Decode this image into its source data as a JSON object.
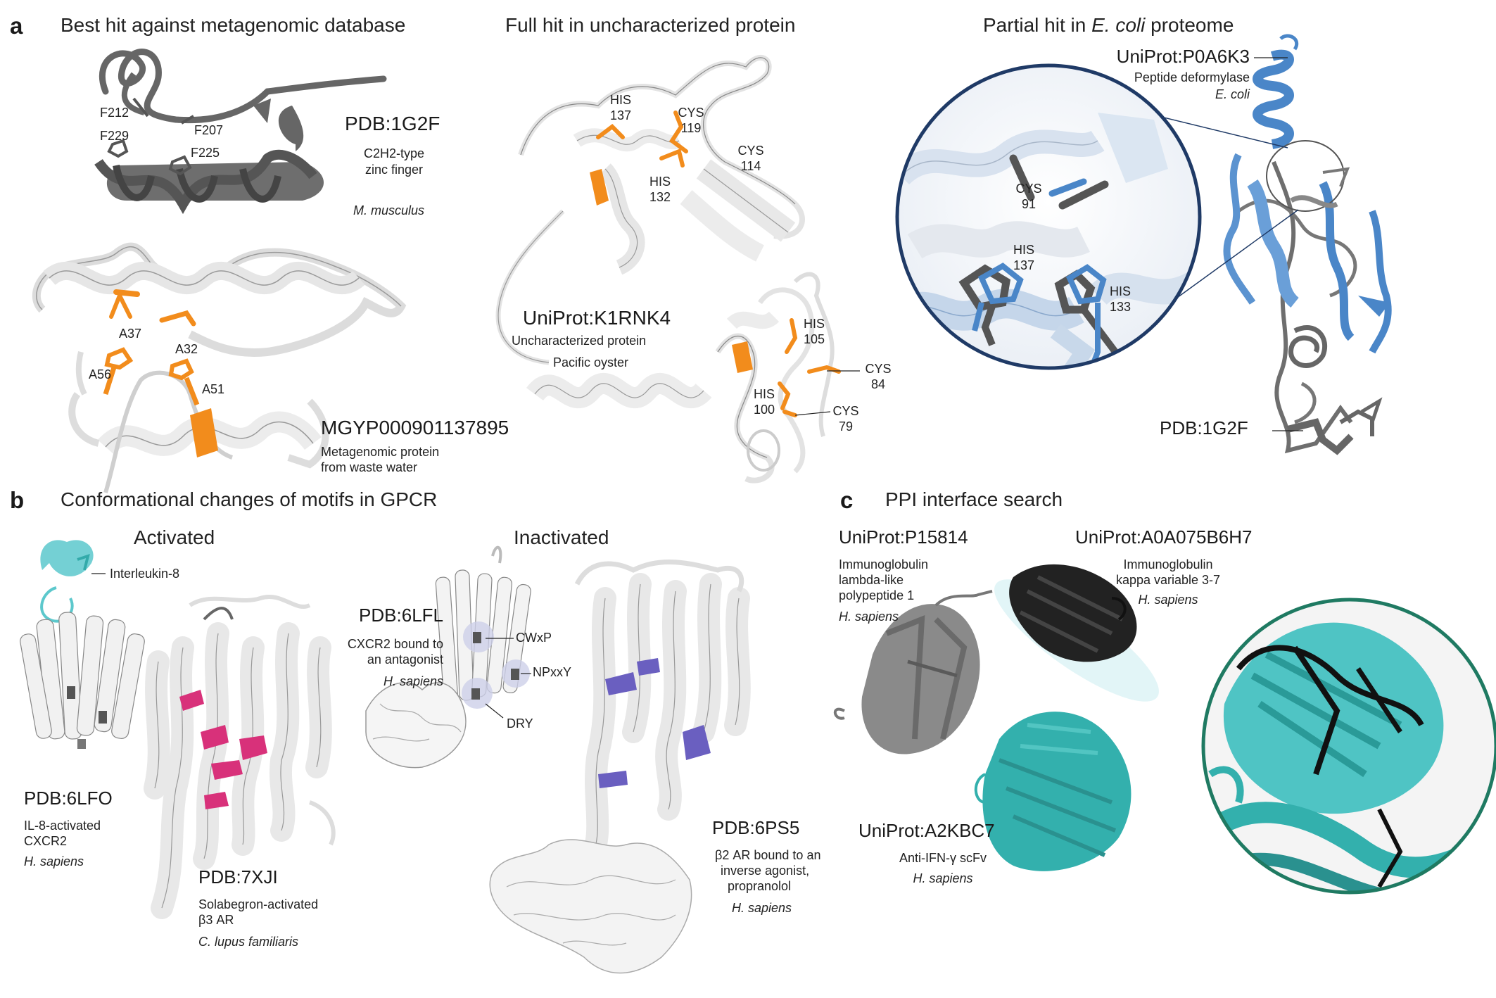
{
  "panel_a": {
    "letter": "a",
    "col1": {
      "title": "Best hit against metagenomic database",
      "top": {
        "id": "PDB:1G2F",
        "desc_line1": "C2H2-type",
        "desc_line2": "zinc finger",
        "species": "M. musculus",
        "residues": [
          "F212",
          "F207",
          "F229",
          "F225"
        ]
      },
      "bottom": {
        "id": "MGYP000901137895",
        "desc_line1": "Metagenomic protein",
        "desc_line2": "from waste water",
        "residues": [
          "A37",
          "A32",
          "A56",
          "A51"
        ]
      }
    },
    "col2": {
      "title": "Full hit in uncharacterized protein",
      "id": "UniProt:K1RNK4",
      "desc": "Uncharacterized protein",
      "species": "Pacific oyster",
      "residues_top": [
        {
          "name": "HIS",
          "num": "137"
        },
        {
          "name": "CYS",
          "num": "119"
        },
        {
          "name": "CYS",
          "num": "114"
        },
        {
          "name": "HIS",
          "num": "132"
        }
      ],
      "residues_bottom": [
        {
          "name": "HIS",
          "num": "105"
        },
        {
          "name": "CYS",
          "num": "84"
        },
        {
          "name": "HIS",
          "num": "100"
        },
        {
          "name": "CYS",
          "num": "79"
        }
      ]
    },
    "col3": {
      "title_prefix": "Partial hit in ",
      "title_italic": "E. coli",
      "title_suffix": " proteome",
      "top_id": "UniProt:P0A6K3",
      "top_desc": "Peptide deformylase",
      "top_species": "E. coli",
      "bottom_id": "PDB:1G2F",
      "zoom_residues": [
        {
          "name": "CYS",
          "num": "91"
        },
        {
          "name": "HIS",
          "num": "137"
        },
        {
          "name": "HIS",
          "num": "133"
        }
      ]
    }
  },
  "panel_b": {
    "letter": "b",
    "title": "Conformational changes of motifs in GPCR",
    "activated": {
      "header": "Activated",
      "ligand_label": "Interleukin-8",
      "s1": {
        "id": "PDB:6LFO",
        "desc_line1": "IL-8-activated",
        "desc_line2": "CXCR2",
        "species": "H. sapiens"
      },
      "s2": {
        "id": "PDB:7XJI",
        "desc_line1": "Solabegron-activated",
        "desc_line2": "β3 AR",
        "species": "C. lupus familiaris"
      }
    },
    "inactivated": {
      "header": "Inactivated",
      "s1": {
        "id": "PDB:6LFL",
        "desc_line1": "CXCR2 bound to",
        "desc_line2": "an antagonist",
        "species": "H. sapiens"
      },
      "motifs": [
        "CWxP",
        "NPxxY",
        "DRY"
      ],
      "s2": {
        "id": "PDB:6PS5",
        "desc_line1": "β2 AR bound to an",
        "desc_line2": "inverse agonist,",
        "desc_line3": "propranolol",
        "species": "H. sapiens"
      }
    }
  },
  "panel_c": {
    "letter": "c",
    "title": "PPI interface search",
    "p1": {
      "id": "UniProt:P15814",
      "desc_line1": "Immunoglobulin",
      "desc_line2": "lambda-like",
      "desc_line3": "polypeptide 1",
      "species": "H. sapiens"
    },
    "p2": {
      "id": "UniProt:A0A075B6H7",
      "desc_line1": "Immunoglobulin",
      "desc_line2": "kappa variable 3-7",
      "species": "H. sapiens"
    },
    "p3": {
      "id": "UniProt:A2KBC7",
      "desc": "Anti-IFN-γ scFv",
      "species": "H. sapiens"
    }
  },
  "colors": {
    "grey_structure": "#666666",
    "white_structure": "#f2f2f2",
    "orange": "#f28c1c",
    "blue": "#4a86c8",
    "navy_ring": "#1f3a66",
    "teal": "#33b0ad",
    "teal_ring": "#1f7a62",
    "magenta": "#d8317a",
    "purple": "#6a5fc0",
    "cyan_ligand": "#5cc8cc"
  }
}
